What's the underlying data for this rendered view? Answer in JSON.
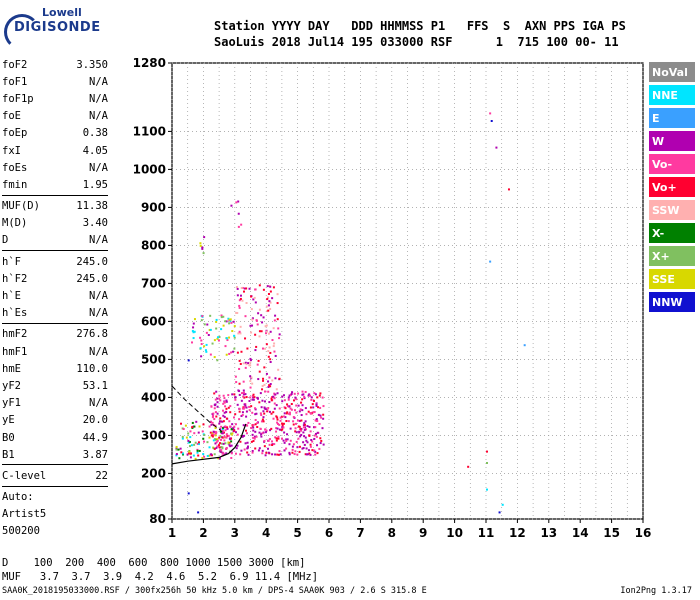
{
  "logo": {
    "line1": "Lowell",
    "line2": "DIGISONDE"
  },
  "header": {
    "row1": "Station YYYY DAY   DDD HHMMSS P1   FFS  S  AXN PPS IGA PS",
    "row2": "SaoLuis 2018 Jul14 195 033000 RSF      1  715 100 00- 11"
  },
  "params": [
    [
      {
        "k": "foF2",
        "v": "3.350"
      },
      {
        "k": "foF1",
        "v": "N/A"
      },
      {
        "k": "foF1p",
        "v": "N/A"
      },
      {
        "k": "foE",
        "v": "N/A"
      },
      {
        "k": "foEp",
        "v": "0.38"
      },
      {
        "k": "fxI",
        "v": "4.05"
      },
      {
        "k": "foEs",
        "v": "N/A"
      },
      {
        "k": "fmin",
        "v": "1.95"
      }
    ],
    [
      {
        "k": "MUF(D)",
        "v": "11.38"
      },
      {
        "k": "M(D)",
        "v": "3.40"
      },
      {
        "k": "D",
        "v": "N/A"
      }
    ],
    [
      {
        "k": "h`F",
        "v": "245.0"
      },
      {
        "k": "h`F2",
        "v": "245.0"
      },
      {
        "k": "h`E",
        "v": "N/A"
      },
      {
        "k": "h`Es",
        "v": "N/A"
      }
    ],
    [
      {
        "k": "hmF2",
        "v": "276.8"
      },
      {
        "k": "hmF1",
        "v": "N/A"
      },
      {
        "k": "hmE",
        "v": "110.0"
      },
      {
        "k": "yF2",
        "v": "53.1"
      },
      {
        "k": "yF1",
        "v": "N/A"
      },
      {
        "k": "yE",
        "v": "20.0"
      },
      {
        "k": "B0",
        "v": "44.9"
      },
      {
        "k": "B1",
        "v": "3.87"
      }
    ],
    [
      {
        "k": "C-level",
        "v": "22"
      }
    ],
    [
      {
        "k": "Auto:",
        "v": ""
      },
      {
        "k": "Artist5",
        "v": ""
      },
      {
        "k": "500200",
        "v": ""
      }
    ]
  ],
  "legend": [
    {
      "label": "NoVal",
      "color": "#8c8c8c"
    },
    {
      "label": "NNE",
      "color": "#00e5ff"
    },
    {
      "label": "E",
      "color": "#3aa0ff"
    },
    {
      "label": "W",
      "color": "#b000b0"
    },
    {
      "label": "Vo-",
      "color": "#ff3aa0"
    },
    {
      "label": "Vo+",
      "color": "#ff0030"
    },
    {
      "label": "SSW",
      "color": "#ffb0b0"
    },
    {
      "label": "X-",
      "color": "#008000"
    },
    {
      "label": "X+",
      "color": "#80c060"
    },
    {
      "label": "SSE",
      "color": "#d8d800"
    },
    {
      "label": "NNW",
      "color": "#1010d0"
    }
  ],
  "chart_data": {
    "type": "scatter",
    "xlim": [
      1,
      16
    ],
    "ylim": [
      80,
      1280
    ],
    "x_ticks": [
      "1",
      "2",
      "3",
      "4",
      "5",
      "6",
      "7",
      "8",
      "9",
      "10",
      "11",
      "12",
      "13",
      "14",
      "15",
      "16"
    ],
    "y_ticks": [
      {
        "v": 80,
        "label": "80"
      },
      {
        "v": 200,
        "label": "200"
      },
      {
        "v": 300,
        "label": "300"
      },
      {
        "v": 400,
        "label": "400"
      },
      {
        "v": 500,
        "label": "500"
      },
      {
        "v": 600,
        "label": "600"
      },
      {
        "v": 700,
        "label": "700"
      },
      {
        "v": 800,
        "label": "800"
      },
      {
        "v": 900,
        "label": "900"
      },
      {
        "v": 1000,
        "label": "1000"
      },
      {
        "v": 1100,
        "label": "1100"
      },
      {
        "v": 1280,
        "label": "1280"
      }
    ],
    "grid": true,
    "clusters": [
      {
        "x0": 1.1,
        "x1": 2.9,
        "y0": 240,
        "y1": 340,
        "n": 130,
        "colors": [
          "#ff0030",
          "#b000b0",
          "#ff3aa0",
          "#80c060",
          "#d8d800",
          "#008000",
          "#00e5ff"
        ]
      },
      {
        "x0": 2.2,
        "x1": 5.8,
        "y0": 250,
        "y1": 420,
        "n": 520,
        "colors": [
          "#b000b0",
          "#ff3aa0",
          "#ff0030",
          "#b000b0",
          "#ff3aa0"
        ]
      },
      {
        "x0": 3.0,
        "x1": 4.4,
        "y0": 420,
        "y1": 700,
        "n": 150,
        "colors": [
          "#b000b0",
          "#ff3aa0",
          "#ff0030",
          "#ffb0b0"
        ]
      },
      {
        "x0": 1.5,
        "x1": 3.0,
        "y0": 500,
        "y1": 620,
        "n": 70,
        "colors": [
          "#d8d800",
          "#00e5ff",
          "#ff3aa0",
          "#b000b0",
          "#80c060"
        ]
      },
      {
        "x0": 1.8,
        "x1": 2.0,
        "y0": 770,
        "y1": 830,
        "n": 6,
        "colors": [
          "#d8d800",
          "#b000b0",
          "#80c060"
        ]
      },
      {
        "x0": 2.85,
        "x1": 3.2,
        "y0": 850,
        "y1": 930,
        "n": 6,
        "colors": [
          "#ff3aa0",
          "#b000b0"
        ]
      }
    ],
    "points": [
      {
        "x": 11.1,
        "y": 1150,
        "c": "#ff3aa0"
      },
      {
        "x": 11.15,
        "y": 1130,
        "c": "#1010d0"
      },
      {
        "x": 11.3,
        "y": 1060,
        "c": "#b000b0"
      },
      {
        "x": 11.7,
        "y": 950,
        "c": "#ff0030"
      },
      {
        "x": 11.1,
        "y": 760,
        "c": "#3aa0ff"
      },
      {
        "x": 12.2,
        "y": 540,
        "c": "#3aa0ff"
      },
      {
        "x": 11.0,
        "y": 260,
        "c": "#ff0030"
      },
      {
        "x": 11.0,
        "y": 230,
        "c": "#80c060"
      },
      {
        "x": 11.0,
        "y": 160,
        "c": "#00e5ff"
      },
      {
        "x": 10.4,
        "y": 220,
        "c": "#ff0030"
      },
      {
        "x": 11.5,
        "y": 120,
        "c": "#00e5ff"
      },
      {
        "x": 11.4,
        "y": 100,
        "c": "#1010d0"
      },
      {
        "x": 1.5,
        "y": 150,
        "c": "#1010d0"
      },
      {
        "x": 1.8,
        "y": 100,
        "c": "#1010d0"
      },
      {
        "x": 1.5,
        "y": 500,
        "c": "#1010d0"
      }
    ],
    "curves": {
      "trace": [
        [
          1,
          225
        ],
        [
          1.5,
          232
        ],
        [
          2,
          237
        ],
        [
          2.5,
          242
        ],
        [
          2.8,
          252
        ],
        [
          3.0,
          268
        ],
        [
          3.2,
          295
        ],
        [
          3.35,
          330
        ]
      ],
      "dashed": [
        [
          1,
          430
        ],
        [
          1.4,
          395
        ],
        [
          1.8,
          365
        ],
        [
          2.2,
          335
        ],
        [
          2.6,
          310
        ]
      ]
    }
  },
  "footer": {
    "row1": "D    100  200  400  600  800 1000 1500 3000 [km]",
    "row2": "MUF   3.7  3.7  3.9  4.2  4.6  5.2  6.9 11.4 [MHz]",
    "source": "SAA0K_2018195033000.RSF / 300fx256h 50 kHz 5.0 km / DPS-4 SAA0K 903 / 2.6 S 315.8 E",
    "version": "Ion2Png 1.3.17"
  }
}
